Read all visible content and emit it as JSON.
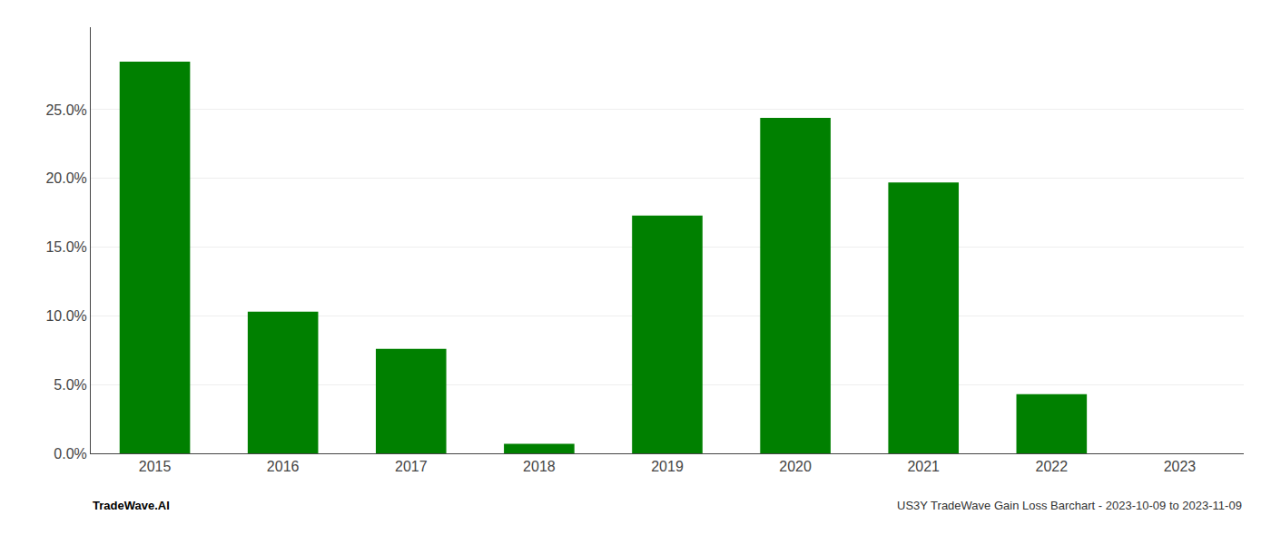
{
  "chart_data": {
    "type": "bar",
    "categories": [
      "2015",
      "2016",
      "2017",
      "2018",
      "2019",
      "2020",
      "2021",
      "2022",
      "2023"
    ],
    "values": [
      0.285,
      0.103,
      0.076,
      0.007,
      0.173,
      0.244,
      0.197,
      0.043,
      0.0
    ],
    "color": "#008000",
    "ylim": [
      0,
      0.31
    ],
    "yticks": [
      {
        "value": 0.0,
        "label": "0.0%"
      },
      {
        "value": 0.05,
        "label": "5.0%"
      },
      {
        "value": 0.1,
        "label": "10.0%"
      },
      {
        "value": 0.15,
        "label": "15.0%"
      },
      {
        "value": 0.2,
        "label": "20.0%"
      },
      {
        "value": 0.25,
        "label": "25.0%"
      }
    ],
    "grid": true,
    "annotations": [
      "TradeWave.AI",
      "US3Y TradeWave Gain Loss Barchart - 2023-10-09 to 2023-11-09"
    ]
  }
}
